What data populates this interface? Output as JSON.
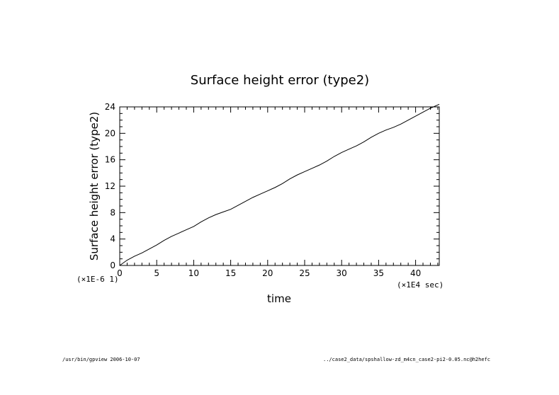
{
  "chart_data": {
    "type": "line",
    "title": "Surface height error (type2)",
    "xlabel": "time",
    "ylabel": "Surface height error (type2)",
    "x_unit_label": "(×1E4 sec)",
    "y_unit_label": "(×1E-6 1)",
    "xlim": [
      0,
      43.2
    ],
    "ylim": [
      0,
      24
    ],
    "xticks": [
      0,
      5,
      10,
      15,
      20,
      25,
      30,
      35,
      40
    ],
    "yticks": [
      0,
      4,
      8,
      12,
      16,
      20,
      24
    ],
    "grid": false,
    "series": [
      {
        "x": [
          0,
          1,
          2,
          3,
          4,
          5,
          6,
          7,
          8,
          9,
          10,
          11,
          12,
          13,
          14,
          15,
          16,
          17,
          18,
          19,
          20,
          21,
          22,
          23,
          24,
          25,
          26,
          27,
          28,
          29,
          30,
          31,
          32,
          33,
          34,
          35,
          36,
          37,
          38,
          39,
          40,
          41,
          42,
          43.2
        ],
        "y": [
          0,
          0.8,
          1.4,
          1.9,
          2.5,
          3.1,
          3.8,
          4.4,
          4.9,
          5.4,
          5.9,
          6.6,
          7.2,
          7.7,
          8.1,
          8.5,
          9.1,
          9.7,
          10.3,
          10.8,
          11.3,
          11.8,
          12.4,
          13.1,
          13.7,
          14.2,
          14.7,
          15.2,
          15.8,
          16.5,
          17.1,
          17.6,
          18.1,
          18.7,
          19.4,
          20.0,
          20.5,
          20.9,
          21.4,
          22.0,
          22.6,
          23.2,
          23.8,
          24.4
        ]
      }
    ]
  },
  "footer": {
    "left": "/usr/bin/gpview  2006-10-07",
    "right": "../case2_data/spshallow-zd_m4cn_case2-pi2-0.05.nc@h2hefc"
  }
}
